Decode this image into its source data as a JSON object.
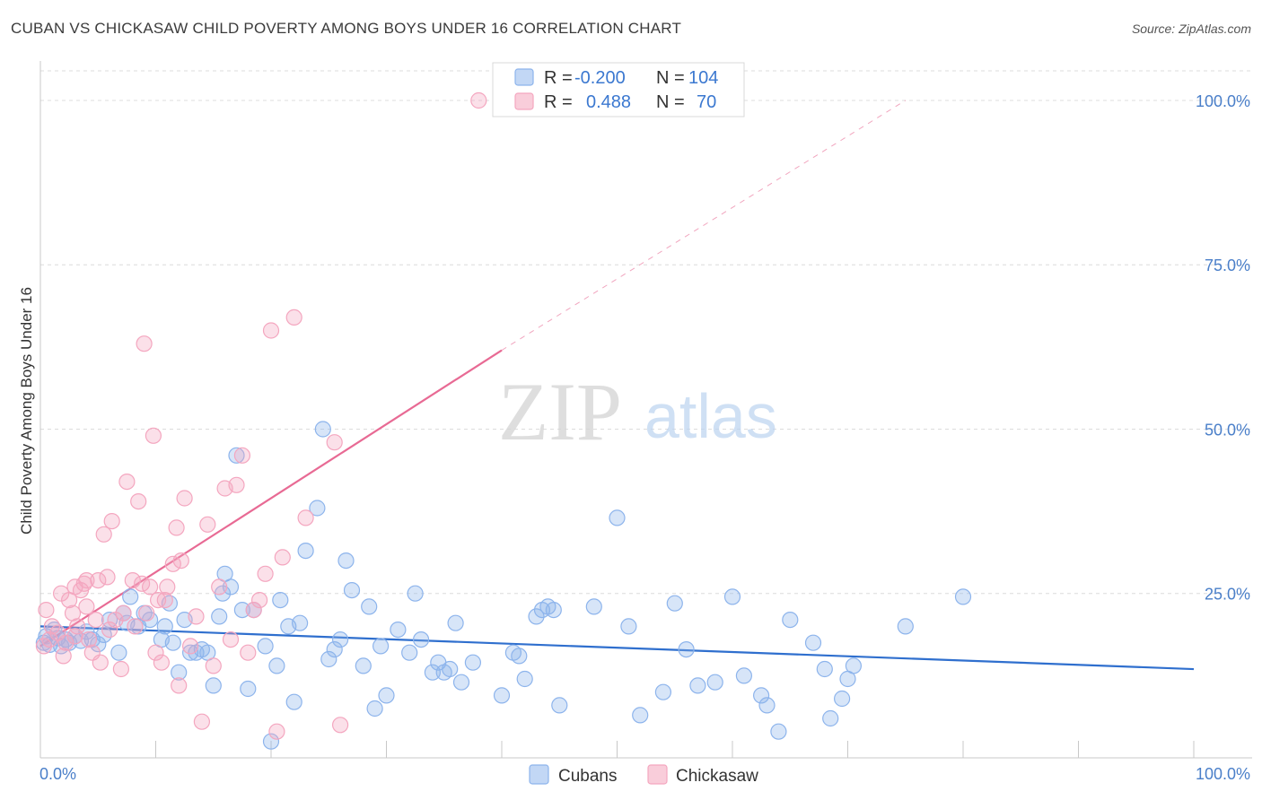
{
  "header": {
    "title": "CUBAN VS CHICKASAW CHILD POVERTY AMONG BOYS UNDER 16 CORRELATION CHART",
    "source": "Source: ZipAtlas.com"
  },
  "watermark": {
    "zip": "ZIP",
    "atlas": "atlas"
  },
  "legend": {
    "rows": [
      {
        "r_label": "R =",
        "r_value": "-0.200",
        "n_label": "N =",
        "n_value": "104",
        "color": "#8db4ec"
      },
      {
        "r_label": "R =",
        "r_value": "0.488",
        "n_label": "N =",
        "n_value": "70",
        "color": "#f4a6bf"
      }
    ]
  },
  "bottom_legend": {
    "cubans": "Cubans",
    "chickasaw": "Chickasaw"
  },
  "chart_data": {
    "type": "scatter",
    "title": "CUBAN VS CHICKASAW CHILD POVERTY AMONG BOYS UNDER 16 CORRELATION CHART",
    "ylabel": "Child Poverty Among Boys Under 16",
    "xlabel": "",
    "xlim": [
      0,
      100
    ],
    "ylim": [
      0,
      100
    ],
    "x_tick_labels": [
      "0.0%",
      "100.0%"
    ],
    "y_tick_labels": [
      "25.0%",
      "50.0%",
      "75.0%",
      "100.0%"
    ],
    "y_ticks": [
      25,
      50,
      75,
      100
    ],
    "grid": true,
    "legend_position": "top-center",
    "series": [
      {
        "name": "Cubans",
        "color": "#8db4ec",
        "line_color": "#2f6fce",
        "trend": {
          "x0": 0,
          "y0": 20.0,
          "x1": 100,
          "y1": 13.5
        },
        "points": [
          [
            0.3,
            17.5
          ],
          [
            0.5,
            18.5
          ],
          [
            0.8,
            17.2
          ],
          [
            1.2,
            19.5
          ],
          [
            1.5,
            18.2
          ],
          [
            1.8,
            17.0
          ],
          [
            2.2,
            18.0
          ],
          [
            2.5,
            17.5
          ],
          [
            3.0,
            18.5
          ],
          [
            3.5,
            17.8
          ],
          [
            4.0,
            19.2
          ],
          [
            4.5,
            18.0
          ],
          [
            5.0,
            17.3
          ],
          [
            5.5,
            18.7
          ],
          [
            6.0,
            21.0
          ],
          [
            6.8,
            16.0
          ],
          [
            7.2,
            22.0
          ],
          [
            7.5,
            20.5
          ],
          [
            7.8,
            24.5
          ],
          [
            8.5,
            20.0
          ],
          [
            9.0,
            22.0
          ],
          [
            9.5,
            21.0
          ],
          [
            10.5,
            18.0
          ],
          [
            10.8,
            20.0
          ],
          [
            11.2,
            23.5
          ],
          [
            11.5,
            17.5
          ],
          [
            12.0,
            13.0
          ],
          [
            12.5,
            21.0
          ],
          [
            13.0,
            16.0
          ],
          [
            13.5,
            16.0
          ],
          [
            14.0,
            16.5
          ],
          [
            14.5,
            16.0
          ],
          [
            15.0,
            11.0
          ],
          [
            15.5,
            21.5
          ],
          [
            15.8,
            25.0
          ],
          [
            16.0,
            28.0
          ],
          [
            16.5,
            26.0
          ],
          [
            17.0,
            46.0
          ],
          [
            17.5,
            22.5
          ],
          [
            18.0,
            10.5
          ],
          [
            18.5,
            22.5
          ],
          [
            19.5,
            17.0
          ],
          [
            20.0,
            2.5
          ],
          [
            20.5,
            14.0
          ],
          [
            20.8,
            24.0
          ],
          [
            21.5,
            20.0
          ],
          [
            22.0,
            8.5
          ],
          [
            22.5,
            20.5
          ],
          [
            23.0,
            31.5
          ],
          [
            24.0,
            38.0
          ],
          [
            24.5,
            50.0
          ],
          [
            25.0,
            15.0
          ],
          [
            25.5,
            16.5
          ],
          [
            26.0,
            18.0
          ],
          [
            26.5,
            30.0
          ],
          [
            27.0,
            25.5
          ],
          [
            28.0,
            14.0
          ],
          [
            28.5,
            23.0
          ],
          [
            29.0,
            7.5
          ],
          [
            29.5,
            17.0
          ],
          [
            30.0,
            9.5
          ],
          [
            31.0,
            19.5
          ],
          [
            32.0,
            16.0
          ],
          [
            32.5,
            25.0
          ],
          [
            33.0,
            18.0
          ],
          [
            34.0,
            13.0
          ],
          [
            34.5,
            14.5
          ],
          [
            35.0,
            13.0
          ],
          [
            35.5,
            13.5
          ],
          [
            36.0,
            20.5
          ],
          [
            36.5,
            11.5
          ],
          [
            37.5,
            14.5
          ],
          [
            40.0,
            9.5
          ],
          [
            41.0,
            16.0
          ],
          [
            41.5,
            15.5
          ],
          [
            42.0,
            12.0
          ],
          [
            43.0,
            21.5
          ],
          [
            43.5,
            22.5
          ],
          [
            44.0,
            23.0
          ],
          [
            44.5,
            22.5
          ],
          [
            45.0,
            8.0
          ],
          [
            48.0,
            23.0
          ],
          [
            50.0,
            36.5
          ],
          [
            51.0,
            20.0
          ],
          [
            52.0,
            6.5
          ],
          [
            54.0,
            10.0
          ],
          [
            55.0,
            23.5
          ],
          [
            56.0,
            16.5
          ],
          [
            57.0,
            11.0
          ],
          [
            58.5,
            11.5
          ],
          [
            60.0,
            24.5
          ],
          [
            61.0,
            12.5
          ],
          [
            62.5,
            9.5
          ],
          [
            63.0,
            8.0
          ],
          [
            64.0,
            4.0
          ],
          [
            65.0,
            21.0
          ],
          [
            67.0,
            17.5
          ],
          [
            68.0,
            13.5
          ],
          [
            68.5,
            6.0
          ],
          [
            69.5,
            9.0
          ],
          [
            70.0,
            12.0
          ],
          [
            70.5,
            14.0
          ],
          [
            75.0,
            20.0
          ],
          [
            80.0,
            24.5
          ]
        ]
      },
      {
        "name": "Chickasaw",
        "color": "#f4a6bf",
        "line_color": "#e86a94",
        "trend": {
          "x0": 0,
          "y0": 17.0,
          "x1": 40,
          "y1": 62.0,
          "dash_x1": 75,
          "dash_y1": 100.0
        },
        "points": [
          [
            0.3,
            17.0
          ],
          [
            0.5,
            22.5
          ],
          [
            0.8,
            18.0
          ],
          [
            1.0,
            20.0
          ],
          [
            1.5,
            19.0
          ],
          [
            1.8,
            25.0
          ],
          [
            2.0,
            15.5
          ],
          [
            2.2,
            17.5
          ],
          [
            2.5,
            24.0
          ],
          [
            3.0,
            26.0
          ],
          [
            3.2,
            20.0
          ],
          [
            3.5,
            25.5
          ],
          [
            3.8,
            26.5
          ],
          [
            4.0,
            27.0
          ],
          [
            4.2,
            18.0
          ],
          [
            4.5,
            16.0
          ],
          [
            4.8,
            21.0
          ],
          [
            5.0,
            27.0
          ],
          [
            5.2,
            14.5
          ],
          [
            5.5,
            34.0
          ],
          [
            5.8,
            27.5
          ],
          [
            6.0,
            19.5
          ],
          [
            6.2,
            36.0
          ],
          [
            6.5,
            21.0
          ],
          [
            7.0,
            13.5
          ],
          [
            7.2,
            22.0
          ],
          [
            7.5,
            42.0
          ],
          [
            8.0,
            27.0
          ],
          [
            8.2,
            20.0
          ],
          [
            8.5,
            39.0
          ],
          [
            8.8,
            26.5
          ],
          [
            9.0,
            63.0
          ],
          [
            9.2,
            22.0
          ],
          [
            9.5,
            26.0
          ],
          [
            9.8,
            49.0
          ],
          [
            10.0,
            16.0
          ],
          [
            10.2,
            24.0
          ],
          [
            10.5,
            14.5
          ],
          [
            10.8,
            24.0
          ],
          [
            11.0,
            26.0
          ],
          [
            11.5,
            29.5
          ],
          [
            11.8,
            35.0
          ],
          [
            12.0,
            11.0
          ],
          [
            12.2,
            30.0
          ],
          [
            12.5,
            39.5
          ],
          [
            13.0,
            17.0
          ],
          [
            13.5,
            21.5
          ],
          [
            14.0,
            5.5
          ],
          [
            14.5,
            35.5
          ],
          [
            15.0,
            14.0
          ],
          [
            15.5,
            26.0
          ],
          [
            16.0,
            41.0
          ],
          [
            16.5,
            18.0
          ],
          [
            17.0,
            41.5
          ],
          [
            17.5,
            46.0
          ],
          [
            18.0,
            16.0
          ],
          [
            18.5,
            22.5
          ],
          [
            19.0,
            24.0
          ],
          [
            19.5,
            28.0
          ],
          [
            20.0,
            65.0
          ],
          [
            20.5,
            4.0
          ],
          [
            21.0,
            30.5
          ],
          [
            22.0,
            67.0
          ],
          [
            23.0,
            36.5
          ],
          [
            25.5,
            48.0
          ],
          [
            26.0,
            5.0
          ],
          [
            38.0,
            100.0
          ],
          [
            4.0,
            23.0
          ],
          [
            3.0,
            18.5
          ],
          [
            2.8,
            22.0
          ]
        ]
      }
    ]
  }
}
